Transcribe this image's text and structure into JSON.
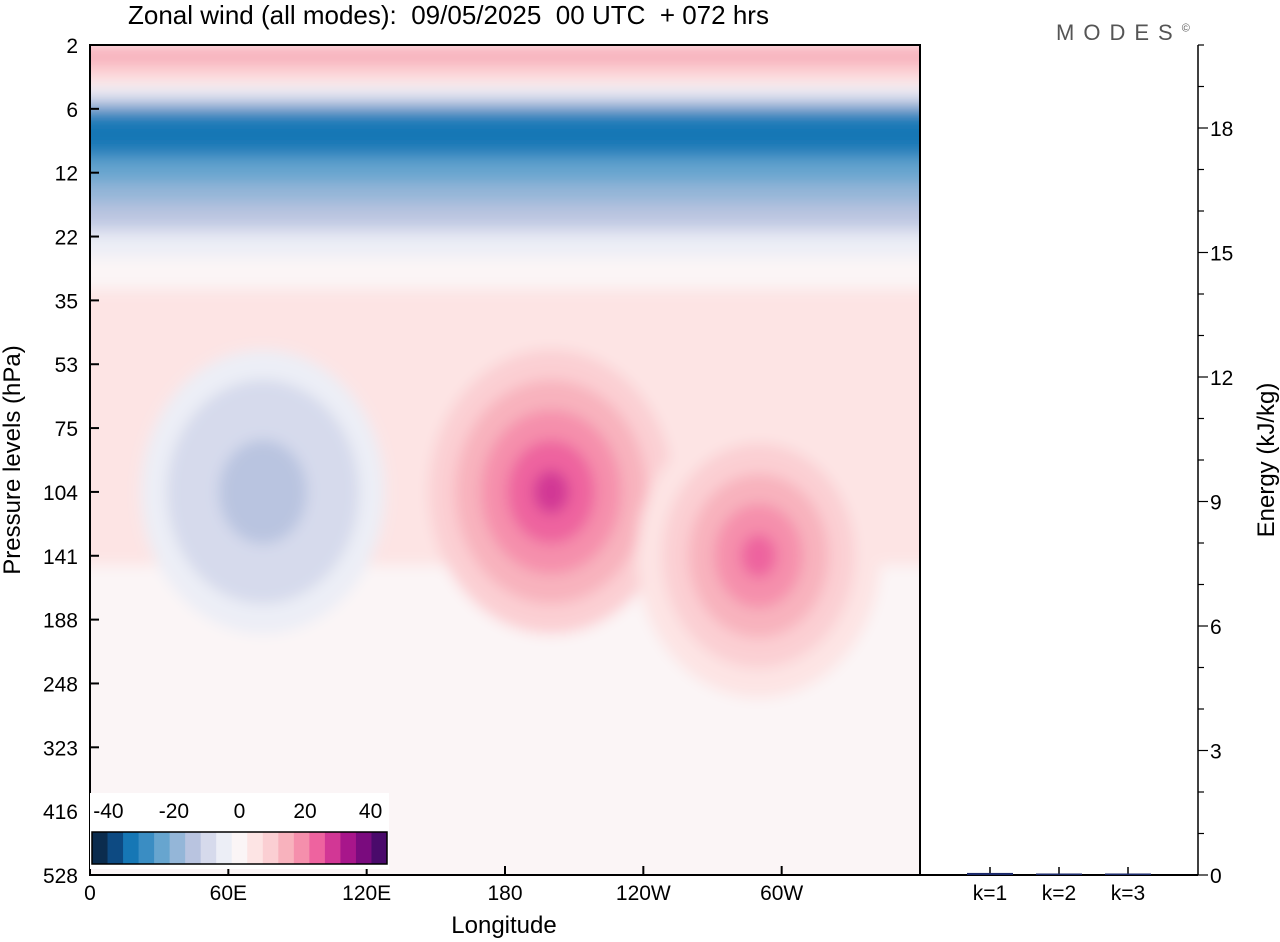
{
  "title": "Zonal wind (all modes):  09/05/2025  00 UTC  + 072 hrs",
  "brand": "MODES",
  "brand_mark": "©",
  "chart_data": [
    {
      "type": "heatmap",
      "title": "Zonal wind (all modes):  09/05/2025  00 UTC  + 072 hrs",
      "xlabel": "Longitude",
      "ylabel": "Pressure levels (hPa)",
      "x_ticks": [
        "0",
        "60E",
        "120E",
        "180",
        "120W",
        "60W"
      ],
      "x_tick_degrees": [
        0,
        60,
        120,
        180,
        240,
        300
      ],
      "x_range": [
        0,
        360
      ],
      "y_levels": [
        2,
        6,
        12,
        22,
        35,
        53,
        75,
        104,
        141,
        188,
        248,
        323,
        416,
        528
      ],
      "y_tick_labels": [
        "2",
        "6",
        "12",
        "22",
        "35",
        "53",
        "75",
        "104",
        "141",
        "188",
        "248",
        "323",
        "416",
        "528"
      ],
      "colorbar": {
        "labels": [
          "-40",
          "-20",
          "0",
          "20",
          "40"
        ],
        "label_values": [
          -40,
          -20,
          0,
          20,
          40
        ],
        "range": [
          -45,
          45
        ],
        "colors": [
          "#0b2c4e",
          "#0d4a82",
          "#1677b5",
          "#3a8dc3",
          "#67a5cf",
          "#94b6d8",
          "#b9c4e0",
          "#d6daec",
          "#eceef6",
          "#fbf5f6",
          "#fde4e4",
          "#fbcfd3",
          "#f8b2bd",
          "#f58fac",
          "#ee639f",
          "#d23795",
          "#a8168b",
          "#7a0b7e",
          "#4a0a6b"
        ]
      },
      "features": [
        {
          "name": "stratospheric easterly jet",
          "levels_hPa": [
            6,
            22
          ],
          "value": -35
        },
        {
          "name": "upper stratosphere westerlies",
          "levels_hPa": [
            2,
            3
          ],
          "value": 15
        },
        {
          "name": "westerly maximum near 160W",
          "lon_deg": 200,
          "level_hPa": 104,
          "value": 30
        },
        {
          "name": "westerly maximum near 70W",
          "lon_deg": 290,
          "level_hPa": 141,
          "value": 22
        },
        {
          "name": "easterly minimum near 75E",
          "lon_deg": 75,
          "level_hPa": 104,
          "value": -15
        }
      ]
    },
    {
      "type": "bar",
      "ylabel": "Energy (kJ/kg)",
      "categories": [
        "k=1",
        "k=2",
        "k=3"
      ],
      "values": [
        0.05,
        0.02,
        0.01
      ],
      "ylim": [
        0,
        20
      ],
      "y_ticks": [
        "0",
        "3",
        "6",
        "9",
        "12",
        "15",
        "18"
      ],
      "y_tick_values": [
        0,
        3,
        6,
        9,
        12,
        15,
        18
      ]
    }
  ]
}
